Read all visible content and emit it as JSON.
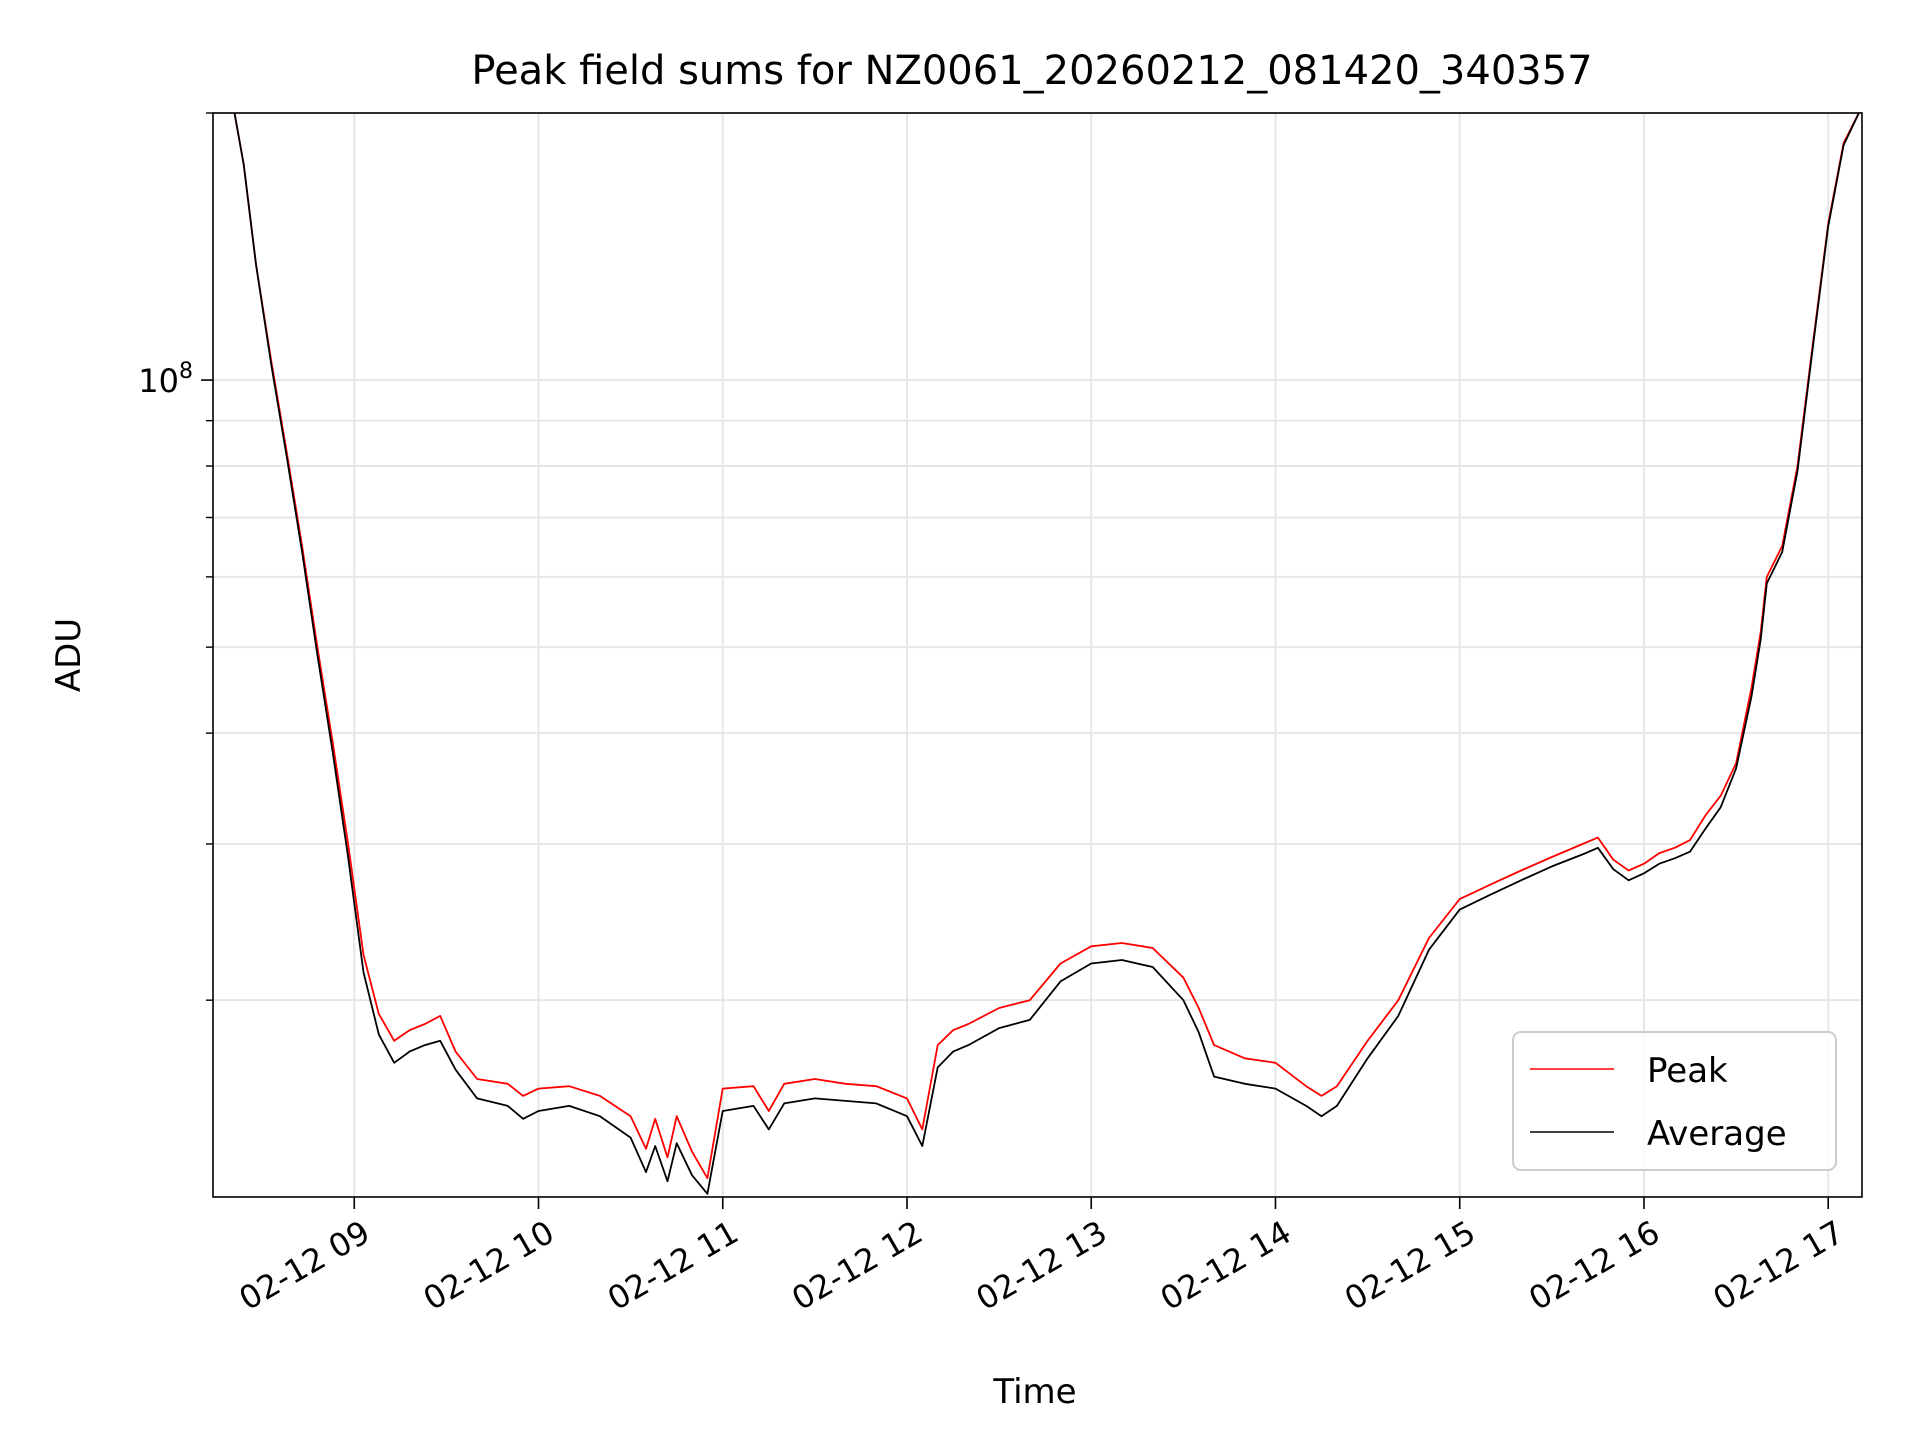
{
  "chart_data": {
    "type": "line",
    "title": "Peak field sums for NZ0061_20260212_081420_340357",
    "xlabel": "Time",
    "ylabel": "ADU",
    "y_scale": "log",
    "ylim": [
      12000000,
      200000000
    ],
    "xlim": [
      "2026-02-12 08:14",
      "2026-02-12 17:11"
    ],
    "x_ticks": [
      {
        "x": "2026-02-12 09:00",
        "label": "02-12 09"
      },
      {
        "x": "2026-02-12 10:00",
        "label": "02-12 10"
      },
      {
        "x": "2026-02-12 11:00",
        "label": "02-12 11"
      },
      {
        "x": "2026-02-12 12:00",
        "label": "02-12 12"
      },
      {
        "x": "2026-02-12 13:00",
        "label": "02-12 13"
      },
      {
        "x": "2026-02-12 14:00",
        "label": "02-12 14"
      },
      {
        "x": "2026-02-12 15:00",
        "label": "02-12 15"
      },
      {
        "x": "2026-02-12 16:00",
        "label": "02-12 16"
      },
      {
        "x": "2026-02-12 17:00",
        "label": "02-12 17"
      }
    ],
    "y_major_tick": {
      "value": 100000000,
      "label_base": "10",
      "label_exp": "8"
    },
    "y_minor_ticks": [
      20000000,
      30000000,
      40000000,
      50000000,
      60000000,
      70000000,
      80000000,
      90000000,
      200000000
    ],
    "grid": true,
    "legend_position": "lower-right",
    "series": [
      {
        "name": "Peak",
        "color": "#ff0000",
        "x": [
          "2026-02-12 08:21",
          "2026-02-12 08:24",
          "2026-02-12 08:28",
          "2026-02-12 08:33",
          "2026-02-12 08:38",
          "2026-02-12 08:43",
          "2026-02-12 08:48",
          "2026-02-12 08:53",
          "2026-02-12 08:58",
          "2026-02-12 09:03",
          "2026-02-12 09:08",
          "2026-02-12 09:13",
          "2026-02-12 09:18",
          "2026-02-12 09:23",
          "2026-02-12 09:28",
          "2026-02-12 09:33",
          "2026-02-12 09:40",
          "2026-02-12 09:50",
          "2026-02-12 09:55",
          "2026-02-12 10:00",
          "2026-02-12 10:10",
          "2026-02-12 10:20",
          "2026-02-12 10:30",
          "2026-02-12 10:35",
          "2026-02-12 10:38",
          "2026-02-12 10:42",
          "2026-02-12 10:45",
          "2026-02-12 10:50",
          "2026-02-12 10:55",
          "2026-02-12 11:00",
          "2026-02-12 11:10",
          "2026-02-12 11:15",
          "2026-02-12 11:20",
          "2026-02-12 11:30",
          "2026-02-12 11:40",
          "2026-02-12 11:50",
          "2026-02-12 12:00",
          "2026-02-12 12:05",
          "2026-02-12 12:10",
          "2026-02-12 12:15",
          "2026-02-12 12:20",
          "2026-02-12 12:30",
          "2026-02-12 12:40",
          "2026-02-12 12:50",
          "2026-02-12 13:00",
          "2026-02-12 13:10",
          "2026-02-12 13:20",
          "2026-02-12 13:30",
          "2026-02-12 13:35",
          "2026-02-12 13:40",
          "2026-02-12 13:50",
          "2026-02-12 14:00",
          "2026-02-12 14:10",
          "2026-02-12 14:15",
          "2026-02-12 14:20",
          "2026-02-12 14:30",
          "2026-02-12 14:40",
          "2026-02-12 14:50",
          "2026-02-12 15:00",
          "2026-02-12 15:10",
          "2026-02-12 15:20",
          "2026-02-12 15:30",
          "2026-02-12 15:40",
          "2026-02-12 15:45",
          "2026-02-12 15:50",
          "2026-02-12 15:55",
          "2026-02-12 16:00",
          "2026-02-12 16:05",
          "2026-02-12 16:10",
          "2026-02-12 16:15",
          "2026-02-12 16:20",
          "2026-02-12 16:25",
          "2026-02-12 16:30",
          "2026-02-12 16:35",
          "2026-02-12 16:38",
          "2026-02-12 16:40",
          "2026-02-12 16:45",
          "2026-02-12 16:50",
          "2026-02-12 16:55",
          "2026-02-12 17:00",
          "2026-02-12 17:05",
          "2026-02-12 17:10"
        ],
        "y": [
          200000000,
          175000000,
          135000000,
          105000000,
          83000000,
          65000000,
          50000000,
          39000000,
          30000000,
          22500000,
          19300000,
          18000000,
          18500000,
          18800000,
          19200000,
          17500000,
          16300000,
          16100000,
          15600000,
          15900000,
          16000000,
          15600000,
          14800000,
          13600000,
          14700000,
          13300000,
          14800000,
          13500000,
          12600000,
          15900000,
          16000000,
          15000000,
          16100000,
          16300000,
          16100000,
          16000000,
          15500000,
          14300000,
          17800000,
          18500000,
          18800000,
          19600000,
          20000000,
          22000000,
          23000000,
          23200000,
          22900000,
          21200000,
          19600000,
          17800000,
          17200000,
          17000000,
          16000000,
          15600000,
          16000000,
          18000000,
          20000000,
          23500000,
          26000000,
          27000000,
          28000000,
          29000000,
          30000000,
          30500000,
          28800000,
          28000000,
          28500000,
          29300000,
          29700000,
          30300000,
          32300000,
          34000000,
          37000000,
          45000000,
          52000000,
          60000000,
          65000000,
          80000000,
          110000000,
          150000000,
          185000000,
          200000000
        ]
      },
      {
        "name": "Average",
        "color": "#000000",
        "x": [
          "2026-02-12 08:21",
          "2026-02-12 08:24",
          "2026-02-12 08:28",
          "2026-02-12 08:33",
          "2026-02-12 08:38",
          "2026-02-12 08:43",
          "2026-02-12 08:48",
          "2026-02-12 08:53",
          "2026-02-12 08:58",
          "2026-02-12 09:03",
          "2026-02-12 09:08",
          "2026-02-12 09:13",
          "2026-02-12 09:18",
          "2026-02-12 09:23",
          "2026-02-12 09:28",
          "2026-02-12 09:33",
          "2026-02-12 09:40",
          "2026-02-12 09:50",
          "2026-02-12 09:55",
          "2026-02-12 10:00",
          "2026-02-12 10:10",
          "2026-02-12 10:20",
          "2026-02-12 10:30",
          "2026-02-12 10:35",
          "2026-02-12 10:38",
          "2026-02-12 10:42",
          "2026-02-12 10:45",
          "2026-02-12 10:50",
          "2026-02-12 10:55",
          "2026-02-12 11:00",
          "2026-02-12 11:10",
          "2026-02-12 11:15",
          "2026-02-12 11:20",
          "2026-02-12 11:30",
          "2026-02-12 11:40",
          "2026-02-12 11:50",
          "2026-02-12 12:00",
          "2026-02-12 12:05",
          "2026-02-12 12:10",
          "2026-02-12 12:15",
          "2026-02-12 12:20",
          "2026-02-12 12:30",
          "2026-02-12 12:40",
          "2026-02-12 12:50",
          "2026-02-12 13:00",
          "2026-02-12 13:10",
          "2026-02-12 13:20",
          "2026-02-12 13:30",
          "2026-02-12 13:35",
          "2026-02-12 13:40",
          "2026-02-12 13:50",
          "2026-02-12 14:00",
          "2026-02-12 14:10",
          "2026-02-12 14:15",
          "2026-02-12 14:20",
          "2026-02-12 14:30",
          "2026-02-12 14:40",
          "2026-02-12 14:50",
          "2026-02-12 15:00",
          "2026-02-12 15:10",
          "2026-02-12 15:20",
          "2026-02-12 15:30",
          "2026-02-12 15:40",
          "2026-02-12 15:45",
          "2026-02-12 15:50",
          "2026-02-12 15:55",
          "2026-02-12 16:00",
          "2026-02-12 16:05",
          "2026-02-12 16:10",
          "2026-02-12 16:15",
          "2026-02-12 16:20",
          "2026-02-12 16:25",
          "2026-02-12 16:30",
          "2026-02-12 16:35",
          "2026-02-12 16:38",
          "2026-02-12 16:40",
          "2026-02-12 16:45",
          "2026-02-12 16:50",
          "2026-02-12 16:55",
          "2026-02-12 17:00",
          "2026-02-12 17:05",
          "2026-02-12 17:10"
        ],
        "y": [
          200000000,
          175000000,
          135000000,
          104000000,
          82000000,
          64000000,
          49000000,
          38000000,
          29000000,
          21500000,
          18300000,
          17000000,
          17500000,
          17800000,
          18000000,
          16700000,
          15500000,
          15200000,
          14700000,
          15000000,
          15200000,
          14800000,
          14000000,
          12800000,
          13700000,
          12500000,
          13800000,
          12700000,
          12100000,
          15000000,
          15200000,
          14300000,
          15300000,
          15500000,
          15400000,
          15300000,
          14800000,
          13700000,
          16800000,
          17500000,
          17800000,
          18600000,
          19000000,
          21000000,
          22000000,
          22200000,
          21800000,
          20000000,
          18400000,
          16400000,
          16100000,
          15900000,
          15200000,
          14800000,
          15200000,
          17200000,
          19200000,
          22800000,
          25300000,
          26300000,
          27300000,
          28300000,
          29200000,
          29700000,
          28100000,
          27300000,
          27800000,
          28500000,
          28900000,
          29400000,
          31200000,
          33000000,
          36500000,
          44000000,
          51000000,
          59000000,
          64000000,
          79000000,
          109000000,
          149000000,
          184000000,
          200000000
        ]
      }
    ]
  }
}
